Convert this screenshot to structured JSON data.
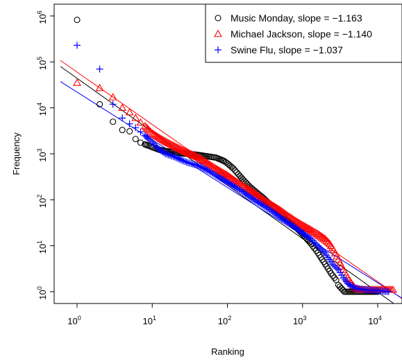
{
  "chart_data": {
    "type": "scatter",
    "title": "",
    "xlabel": "Ranking",
    "ylabel": "Frequency",
    "x_scale": "log",
    "y_scale": "log",
    "xlim": [
      0.7,
      20000
    ],
    "ylim": [
      0.7,
      1200000
    ],
    "x_ticks": [
      {
        "value": 1,
        "base": "10",
        "exp": "0"
      },
      {
        "value": 10,
        "base": "10",
        "exp": "1"
      },
      {
        "value": 100,
        "base": "10",
        "exp": "2"
      },
      {
        "value": 1000,
        "base": "10",
        "exp": "3"
      },
      {
        "value": 10000,
        "base": "10",
        "exp": "4"
      }
    ],
    "y_ticks": [
      {
        "value": 1,
        "base": "10",
        "exp": "0"
      },
      {
        "value": 10,
        "base": "10",
        "exp": "1"
      },
      {
        "value": 100,
        "base": "10",
        "exp": "2"
      },
      {
        "value": 1000,
        "base": "10",
        "exp": "3"
      },
      {
        "value": 10000,
        "base": "10",
        "exp": "4"
      },
      {
        "value": 100000,
        "base": "10",
        "exp": "5"
      },
      {
        "value": 1000000,
        "base": "10",
        "exp": "6"
      }
    ],
    "legend_position": "top-right",
    "series": [
      {
        "name": "Music Monday, slope = −1.163",
        "marker": "circle",
        "color": "#000000",
        "fit": {
          "slope": -1.163,
          "intercept_at_1": 44000
        },
        "points": [
          [
            1,
            820000
          ],
          [
            2,
            12000
          ],
          [
            3,
            5000
          ],
          [
            4,
            3300
          ],
          [
            5,
            3100
          ],
          [
            6,
            2100
          ],
          [
            7,
            1750
          ],
          [
            8,
            1600
          ],
          [
            9,
            1500
          ],
          [
            10,
            1400
          ],
          [
            12,
            1250
          ],
          [
            15,
            1150
          ],
          [
            20,
            1080
          ],
          [
            25,
            1020
          ],
          [
            30,
            1000
          ],
          [
            40,
            950
          ],
          [
            50,
            900
          ],
          [
            60,
            860
          ],
          [
            70,
            830
          ],
          [
            80,
            760
          ],
          [
            90,
            700
          ],
          [
            100,
            620
          ],
          [
            120,
            480
          ],
          [
            140,
            360
          ],
          [
            160,
            280
          ],
          [
            200,
            190
          ],
          [
            250,
            140
          ],
          [
            300,
            110
          ],
          [
            400,
            70
          ],
          [
            500,
            52
          ],
          [
            600,
            38
          ],
          [
            800,
            26
          ],
          [
            1000,
            18
          ],
          [
            1300,
            11
          ],
          [
            1600,
            7
          ],
          [
            2000,
            4
          ],
          [
            2400,
            2.5
          ],
          [
            2800,
            1.8
          ],
          [
            3000,
            1.4
          ],
          [
            3600,
            1
          ],
          [
            5000,
            1
          ],
          [
            7000,
            1
          ],
          [
            10000,
            1
          ]
        ]
      },
      {
        "name": "Michael Jackson, slope = −1.140",
        "marker": "triangle",
        "color": "#ff0000",
        "fit": {
          "slope": -1.14,
          "intercept_at_1": 60000
        },
        "points": [
          [
            1,
            35000
          ],
          [
            2,
            27000
          ],
          [
            3,
            17000
          ],
          [
            4,
            10000
          ],
          [
            5,
            8000
          ],
          [
            6,
            6000
          ],
          [
            7,
            4800
          ],
          [
            8,
            4000
          ],
          [
            9,
            3300
          ],
          [
            10,
            2800
          ],
          [
            12,
            2300
          ],
          [
            15,
            1850
          ],
          [
            20,
            1450
          ],
          [
            25,
            1200
          ],
          [
            30,
            1050
          ],
          [
            40,
            850
          ],
          [
            50,
            680
          ],
          [
            60,
            560
          ],
          [
            70,
            480
          ],
          [
            80,
            420
          ],
          [
            100,
            340
          ],
          [
            130,
            250
          ],
          [
            160,
            200
          ],
          [
            200,
            160
          ],
          [
            250,
            125
          ],
          [
            300,
            100
          ],
          [
            400,
            75
          ],
          [
            500,
            60
          ],
          [
            600,
            48
          ],
          [
            800,
            35
          ],
          [
            1000,
            28
          ],
          [
            1300,
            22
          ],
          [
            1600,
            18
          ],
          [
            2000,
            14
          ],
          [
            2300,
            11
          ],
          [
            2600,
            8
          ],
          [
            3000,
            5
          ],
          [
            3500,
            3
          ],
          [
            4000,
            2
          ],
          [
            4500,
            1.5
          ],
          [
            5000,
            1.2
          ],
          [
            6000,
            1.1
          ],
          [
            9000,
            1.1
          ],
          [
            12000,
            1.1
          ],
          [
            16000,
            1.1
          ]
        ]
      },
      {
        "name": "Swine Flu, slope = −1.037",
        "marker": "plus",
        "color": "#0000ff",
        "fit": {
          "slope": -1.037,
          "intercept_at_1": 22000
        },
        "points": [
          [
            1,
            230000
          ],
          [
            2,
            70000
          ],
          [
            3,
            12000
          ],
          [
            4,
            6000
          ],
          [
            5,
            4500
          ],
          [
            6,
            3700
          ],
          [
            7,
            3000
          ],
          [
            8,
            2500
          ],
          [
            9,
            2100
          ],
          [
            10,
            1800
          ],
          [
            12,
            1300
          ],
          [
            15,
            1000
          ],
          [
            20,
            850
          ],
          [
            25,
            720
          ],
          [
            30,
            640
          ],
          [
            40,
            560
          ],
          [
            50,
            470
          ],
          [
            60,
            400
          ],
          [
            70,
            340
          ],
          [
            80,
            300
          ],
          [
            100,
            240
          ],
          [
            130,
            185
          ],
          [
            160,
            150
          ],
          [
            200,
            115
          ],
          [
            250,
            90
          ],
          [
            300,
            75
          ],
          [
            400,
            55
          ],
          [
            500,
            42
          ],
          [
            600,
            34
          ],
          [
            800,
            25
          ],
          [
            1000,
            19
          ],
          [
            1300,
            14
          ],
          [
            1600,
            10
          ],
          [
            2000,
            7
          ],
          [
            2500,
            4
          ],
          [
            3000,
            3
          ],
          [
            3500,
            2
          ],
          [
            4000,
            1.5
          ],
          [
            5000,
            1.2
          ],
          [
            7000,
            1.1
          ],
          [
            10000,
            1.05
          ],
          [
            14000,
            1
          ]
        ]
      }
    ]
  }
}
